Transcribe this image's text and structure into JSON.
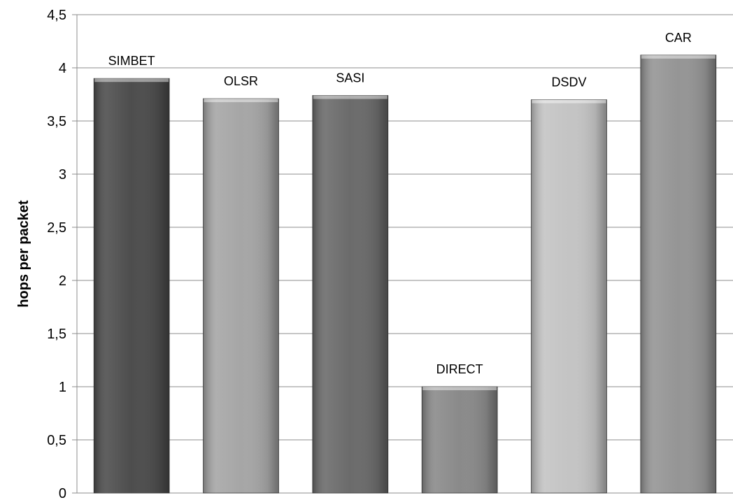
{
  "chart_data": {
    "type": "bar",
    "categories": [
      "SIMBET",
      "OLSR",
      "SASI",
      "DIRECT",
      "DSDV",
      "CAR"
    ],
    "values": [
      3.9,
      3.71,
      3.74,
      1.0,
      3.7,
      4.12
    ],
    "title": "",
    "xlabel": "",
    "ylabel": "hops per packet",
    "ylim": [
      0,
      4.5
    ],
    "yticks": [
      "0",
      "0,5",
      "1",
      "1,5",
      "2",
      "2,5",
      "3",
      "3,5",
      "4",
      "4,5"
    ],
    "grid": true,
    "legend": "none",
    "colors": [
      "#4d4d4d",
      "#a6a6a6",
      "#6b6b6b",
      "#8a8a8a",
      "#c4c4c4",
      "#959595"
    ]
  }
}
